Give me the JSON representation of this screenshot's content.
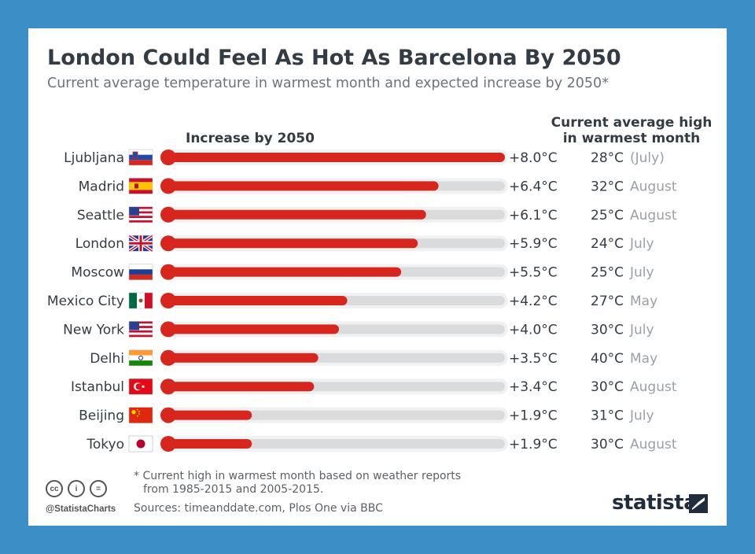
{
  "title": "London Could Feel As Hot As Barcelona By 2050",
  "subtitle": "Current average temperature in warmest month and expected increase by 2050*",
  "header_increase": "Increase by 2050",
  "header_current_line1": "Current average high",
  "header_current_line2": "in warmest month",
  "colors": {
    "bar": "#d7261e",
    "track": "#dadbdc",
    "background": "#3b8fc6"
  },
  "chart_data": {
    "type": "bar",
    "orientation": "horizontal",
    "title": "London Could Feel As Hot As Barcelona By 2050",
    "subtitle": "Current average temperature in warmest month and expected increase by 2050*",
    "xlim": [
      0,
      8.0
    ],
    "grid": false,
    "categories": [
      "Ljubljana",
      "Madrid",
      "Seattle",
      "London",
      "Moscow",
      "Mexico City",
      "New York",
      "Delhi",
      "Istanbul",
      "Beijing",
      "Tokyo"
    ],
    "flags": [
      "slovenia",
      "spain",
      "usa",
      "uk",
      "russia",
      "mexico",
      "usa",
      "india",
      "turkey",
      "china",
      "japan"
    ],
    "values": [
      8.0,
      6.4,
      6.1,
      5.9,
      5.5,
      4.2,
      4.0,
      3.5,
      3.4,
      1.9,
      1.9
    ],
    "value_labels": [
      "+8.0°C",
      "+6.4°C",
      "+6.1°C",
      "+5.9°C",
      "+5.5°C",
      "+4.2°C",
      "+4.0°C",
      "+3.5°C",
      "+3.4°C",
      "+1.9°C",
      "+1.9°C"
    ],
    "current_high": [
      "28°C",
      "32°C",
      "25°C",
      "24°C",
      "25°C",
      "27°C",
      "30°C",
      "40°C",
      "30°C",
      "31°C",
      "30°C"
    ],
    "warmest_month": [
      "(July)",
      "August",
      "August",
      "July",
      "July",
      "May",
      "July",
      "May",
      "August",
      "July",
      "August"
    ]
  },
  "footnote_line1": "* Current high in warmest month based on weather reports",
  "footnote_line2": "from 1985-2015 and 2005-2015.",
  "sources": "Sources: timeanddate.com, Plos One via BBC",
  "license_icons": [
    "cc-icon",
    "attribution-icon",
    "no-derivatives-icon"
  ],
  "license_glyphs": [
    "cc",
    "i",
    "="
  ],
  "handle": "@StatistaCharts",
  "brand": "statista"
}
